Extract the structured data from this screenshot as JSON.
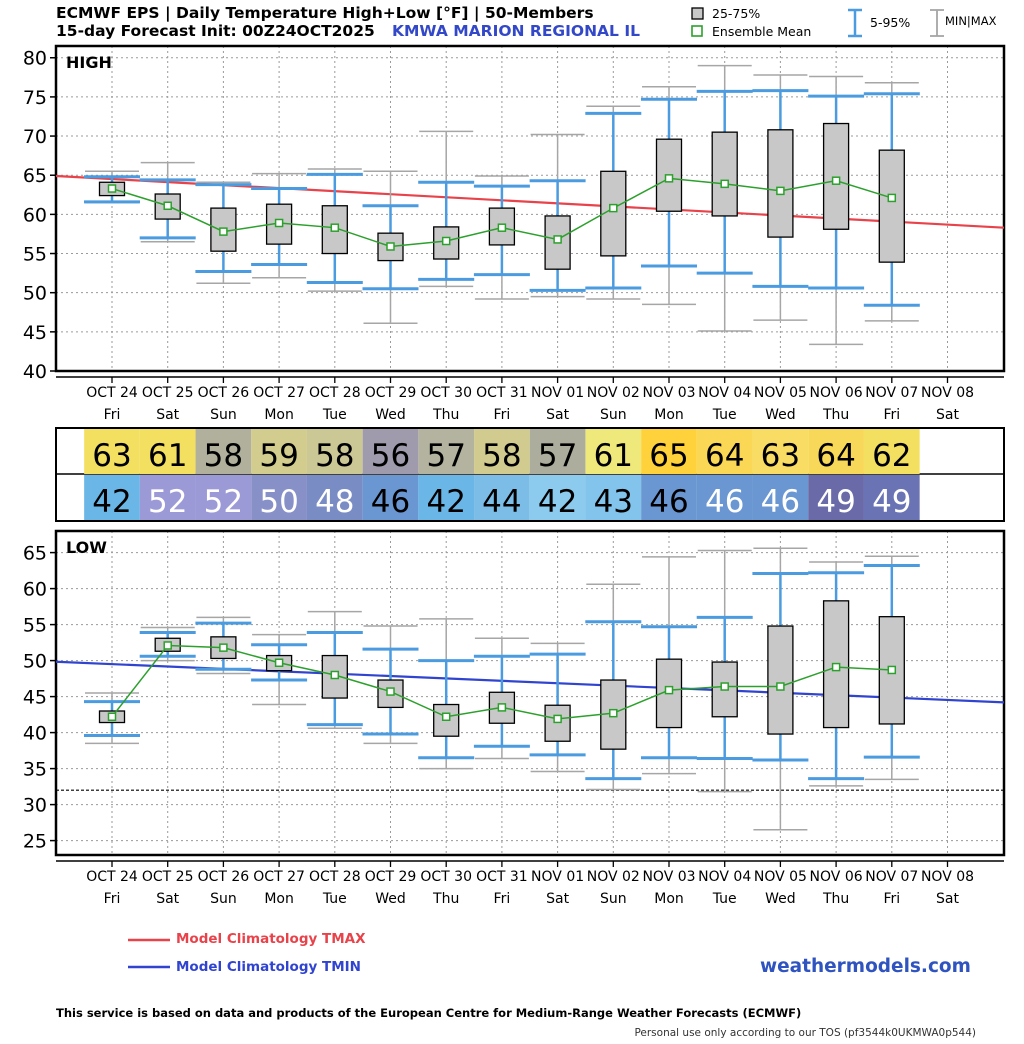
{
  "header": {
    "title": "ECMWF EPS | Daily Temperature High+Low [°F] | 50-Members",
    "subtitle": "15-day Forecast Init: 00Z24OCT2025",
    "station": "KMWA  MARION REGIONAL IL"
  },
  "legend": {
    "box": "25-75%",
    "mean": "Ensemble Mean",
    "whisker": "5-95%",
    "minmax": "MIN|MAX",
    "clim_tmax": "Model Climatology TMAX",
    "clim_tmin": "Model Climatology TMIN"
  },
  "colors": {
    "whisker": "#4b9be0",
    "minmax": "#a6a6a6",
    "box_fill": "#c8c8c8",
    "mean": "#2ca02c",
    "clim_tmax": "#e8424a",
    "clim_tmin": "#3044d0"
  },
  "brand": "weathermodels.com",
  "footer": {
    "ecmwf": "This service is based on data and products of the European Centre for Medium-Range Weather Forecasts (ECMWF)",
    "tos": "Personal use only according to our TOS (pf3544k0UKMWA0p544)"
  },
  "chart_data": [
    {
      "type": "box",
      "panel_label": "HIGH",
      "y_ticks": [
        40,
        45,
        50,
        55,
        60,
        65,
        70,
        75,
        80
      ],
      "ylim": [
        40,
        81.5
      ],
      "grid": true,
      "dates": [
        "OCT 24",
        "OCT 25",
        "OCT 26",
        "OCT 27",
        "OCT 28",
        "OCT 29",
        "OCT 30",
        "OCT 31",
        "NOV 01",
        "NOV 02",
        "NOV 03",
        "NOV 04",
        "NOV 05",
        "NOV 06",
        "NOV 07",
        "NOV 08"
      ],
      "weekdays": [
        "Fri",
        "Sat",
        "Sun",
        "Mon",
        "Tue",
        "Wed",
        "Thu",
        "Fri",
        "Sat",
        "Sun",
        "Mon",
        "Tue",
        "Wed",
        "Thu",
        "Fri",
        "Sat"
      ],
      "stats": [
        {
          "min": 61.5,
          "p5": 61.6,
          "q1": 62.4,
          "mean": 63.3,
          "q3": 64.1,
          "p95": 64.8,
          "max": 65.5
        },
        {
          "min": 56.5,
          "p5": 57.0,
          "q1": 59.4,
          "mean": 61.1,
          "q3": 62.6,
          "p95": 64.4,
          "max": 66.6
        },
        {
          "min": 51.2,
          "p5": 52.7,
          "q1": 55.3,
          "mean": 57.8,
          "q3": 60.8,
          "p95": 63.8,
          "max": 64.1
        },
        {
          "min": 51.9,
          "p5": 53.6,
          "q1": 56.2,
          "mean": 58.9,
          "q3": 61.3,
          "p95": 63.3,
          "max": 65.2
        },
        {
          "min": 50.2,
          "p5": 51.3,
          "q1": 55.0,
          "mean": 58.3,
          "q3": 61.1,
          "p95": 65.1,
          "max": 65.8
        },
        {
          "min": 46.1,
          "p5": 50.5,
          "q1": 54.1,
          "mean": 55.9,
          "q3": 57.6,
          "p95": 61.1,
          "max": 65.5
        },
        {
          "min": 50.8,
          "p5": 51.7,
          "q1": 54.3,
          "mean": 56.6,
          "q3": 58.4,
          "p95": 64.1,
          "max": 70.6
        },
        {
          "min": 49.2,
          "p5": 52.3,
          "q1": 56.1,
          "mean": 58.3,
          "q3": 60.8,
          "p95": 63.6,
          "max": 64.9
        },
        {
          "min": 49.5,
          "p5": 50.3,
          "q1": 53.0,
          "mean": 56.8,
          "q3": 59.8,
          "p95": 64.3,
          "max": 70.2
        },
        {
          "min": 49.2,
          "p5": 50.6,
          "q1": 54.7,
          "mean": 60.8,
          "q3": 65.5,
          "p95": 72.9,
          "max": 73.8
        },
        {
          "min": 48.5,
          "p5": 53.4,
          "q1": 60.4,
          "mean": 64.6,
          "q3": 69.6,
          "p95": 74.7,
          "max": 76.3
        },
        {
          "min": 45.1,
          "p5": 52.5,
          "q1": 59.8,
          "mean": 63.9,
          "q3": 70.5,
          "p95": 75.7,
          "max": 79.0
        },
        {
          "min": 46.5,
          "p5": 50.8,
          "q1": 57.1,
          "mean": 63.0,
          "q3": 70.8,
          "p95": 75.8,
          "max": 77.8
        },
        {
          "min": 43.4,
          "p5": 50.6,
          "q1": 58.1,
          "mean": 64.3,
          "q3": 71.6,
          "p95": 75.1,
          "max": 77.6
        },
        {
          "min": 46.4,
          "p5": 48.4,
          "q1": 53.9,
          "mean": 62.1,
          "q3": 68.2,
          "p95": 75.4,
          "max": 76.8
        }
      ],
      "climatology": {
        "name": "Model Climatology TMAX",
        "x": [
          0,
          15.5
        ],
        "y": [
          64.5,
          58.3
        ]
      }
    },
    {
      "type": "box",
      "panel_label": "LOW",
      "y_ticks": [
        25,
        30,
        35,
        40,
        45,
        50,
        55,
        60,
        65
      ],
      "ylim": [
        23,
        68
      ],
      "grid": true,
      "reference_line": 32,
      "dates": [
        "OCT 24",
        "OCT 25",
        "OCT 26",
        "OCT 27",
        "OCT 28",
        "OCT 29",
        "OCT 30",
        "OCT 31",
        "NOV 01",
        "NOV 02",
        "NOV 03",
        "NOV 04",
        "NOV 05",
        "NOV 06",
        "NOV 07",
        "NOV 08"
      ],
      "weekdays": [
        "Fri",
        "Sat",
        "Sun",
        "Mon",
        "Tue",
        "Wed",
        "Thu",
        "Fri",
        "Sat",
        "Sun",
        "Mon",
        "Tue",
        "Wed",
        "Thu",
        "Fri",
        "Sat"
      ],
      "stats": [
        {
          "min": 38.5,
          "p5": 39.6,
          "q1": 41.4,
          "mean": 42.2,
          "q3": 43.0,
          "p95": 44.3,
          "max": 45.5
        },
        {
          "min": 50.0,
          "p5": 50.6,
          "q1": 51.3,
          "mean": 52.1,
          "q3": 53.1,
          "p95": 53.9,
          "max": 54.6
        },
        {
          "min": 48.2,
          "p5": 48.8,
          "q1": 50.3,
          "mean": 51.8,
          "q3": 53.3,
          "p95": 55.2,
          "max": 56.0
        },
        {
          "min": 43.9,
          "p5": 47.3,
          "q1": 48.6,
          "mean": 49.7,
          "q3": 50.7,
          "p95": 52.2,
          "max": 53.6
        },
        {
          "min": 40.6,
          "p5": 41.1,
          "q1": 44.8,
          "mean": 48.0,
          "q3": 50.7,
          "p95": 53.9,
          "max": 56.8
        },
        {
          "min": 38.5,
          "p5": 39.8,
          "q1": 43.5,
          "mean": 45.7,
          "q3": 47.3,
          "p95": 51.6,
          "max": 54.8
        },
        {
          "min": 35.0,
          "p5": 36.5,
          "q1": 39.5,
          "mean": 42.2,
          "q3": 43.9,
          "p95": 50.0,
          "max": 55.8
        },
        {
          "min": 36.4,
          "p5": 38.1,
          "q1": 41.3,
          "mean": 43.5,
          "q3": 45.6,
          "p95": 50.6,
          "max": 53.1
        },
        {
          "min": 34.6,
          "p5": 36.9,
          "q1": 38.8,
          "mean": 41.9,
          "q3": 43.8,
          "p95": 50.9,
          "max": 52.4
        },
        {
          "min": 32.1,
          "p5": 33.6,
          "q1": 37.7,
          "mean": 42.7,
          "q3": 47.3,
          "p95": 55.4,
          "max": 60.6
        },
        {
          "min": 34.3,
          "p5": 36.5,
          "q1": 40.7,
          "mean": 45.9,
          "q3": 50.2,
          "p95": 54.7,
          "max": 64.4
        },
        {
          "min": 31.8,
          "p5": 36.4,
          "q1": 42.2,
          "mean": 46.4,
          "q3": 49.8,
          "p95": 56.0,
          "max": 65.3
        },
        {
          "min": 26.5,
          "p5": 36.2,
          "q1": 39.8,
          "mean": 46.4,
          "q3": 54.8,
          "p95": 62.1,
          "max": 65.6
        },
        {
          "min": 32.6,
          "p5": 33.6,
          "q1": 40.7,
          "mean": 49.1,
          "q3": 58.3,
          "p95": 62.2,
          "max": 63.7
        },
        {
          "min": 33.5,
          "p5": 36.6,
          "q1": 41.2,
          "mean": 48.7,
          "q3": 56.1,
          "p95": 63.2,
          "max": 64.5
        }
      ],
      "climatology": {
        "name": "Model Climatology TMIN",
        "x": [
          0,
          15.5
        ],
        "y": [
          49.5,
          44.2
        ]
      }
    },
    {
      "type": "table",
      "high": [
        63,
        61,
        58,
        59,
        58,
        56,
        57,
        58,
        57,
        61,
        65,
        64,
        63,
        64,
        62
      ],
      "low": [
        42,
        52,
        52,
        50,
        48,
        46,
        42,
        44,
        42,
        43,
        46,
        46,
        46,
        49,
        49
      ],
      "high_colors": [
        "#f4e060",
        "#f4e060",
        "#b0b09c",
        "#d2cc8e",
        "#ccc896",
        "#9f9aac",
        "#b3b39f",
        "#d1cb8f",
        "#adad9d",
        "#efe87a",
        "#ffd23c",
        "#fad856",
        "#f9dc64",
        "#f8d858",
        "#f4e060"
      ],
      "low_colors": [
        "#6ab6e6",
        "#9c9ad6",
        "#9c9ad6",
        "#8890c8",
        "#7a8cc4",
        "#6a96d2",
        "#6ab6e6",
        "#7bbde6",
        "#8ccbee",
        "#82c4ec",
        "#6a96d2",
        "#6a96d2",
        "#6a96d2",
        "#6a6aa8",
        "#6a74b4"
      ],
      "high_text_colors": [
        "#000",
        "#000",
        "#000",
        "#000",
        "#000",
        "#000",
        "#000",
        "#000",
        "#000",
        "#000",
        "#000",
        "#000",
        "#000",
        "#000",
        "#000"
      ],
      "low_text_colors": [
        "#000",
        "#fff",
        "#fff",
        "#fff",
        "#fff",
        "#000",
        "#000",
        "#000",
        "#000",
        "#000",
        "#000",
        "#fff",
        "#fff",
        "#fff",
        "#fff"
      ]
    }
  ]
}
